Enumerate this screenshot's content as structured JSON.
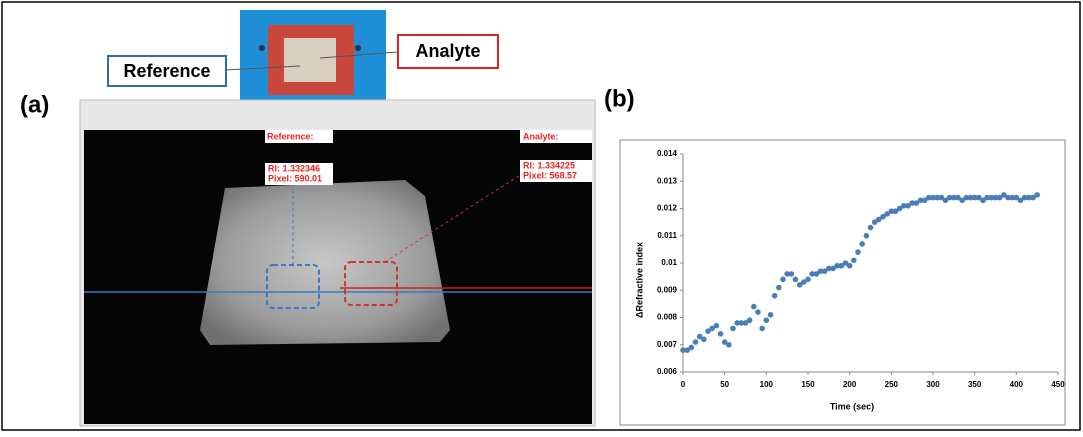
{
  "panel_a": {
    "label": "(a)",
    "photo_labels": {
      "reference": "Reference",
      "analyte": "Analyte"
    },
    "image_labels": {
      "reference_title": "Reference:",
      "reference_ri": "RI: 1.332346",
      "reference_pixel": "Pixel: 590.01",
      "analyte_title": "Analyte:",
      "analyte_ri": "RI: 1.334225",
      "analyte_pixel": "Pixel: 568.57"
    }
  },
  "panel_b": {
    "label": "(b)"
  },
  "chart_data": {
    "type": "scatter",
    "x_label": "Time (sec)",
    "y_label": "ΔRefractive index",
    "color": "#4a7ebb",
    "xlim": [
      0,
      450
    ],
    "ylim": [
      0.006,
      0.014
    ],
    "xticks": [
      0,
      50,
      100,
      150,
      200,
      250,
      300,
      350,
      400,
      450
    ],
    "yticks": [
      0.006,
      0.007,
      0.008,
      0.009,
      0.01,
      0.011,
      0.012,
      0.013,
      0.014
    ],
    "x": [
      0,
      5,
      10,
      15,
      20,
      25,
      30,
      35,
      40,
      45,
      50,
      55,
      60,
      65,
      70,
      75,
      80,
      85,
      90,
      95,
      100,
      105,
      110,
      115,
      120,
      125,
      130,
      135,
      140,
      145,
      150,
      155,
      160,
      165,
      170,
      175,
      180,
      185,
      190,
      195,
      200,
      205,
      210,
      215,
      220,
      225,
      230,
      235,
      240,
      245,
      250,
      255,
      260,
      265,
      270,
      275,
      280,
      285,
      290,
      295,
      300,
      305,
      310,
      315,
      320,
      325,
      330,
      335,
      340,
      345,
      350,
      355,
      360,
      365,
      370,
      375,
      380,
      385,
      390,
      395,
      400,
      405,
      410,
      415,
      420,
      425
    ],
    "values": [
      0.0068,
      0.0068,
      0.0069,
      0.0071,
      0.0073,
      0.0072,
      0.0075,
      0.0076,
      0.0077,
      0.0074,
      0.0071,
      0.007,
      0.0076,
      0.0078,
      0.0078,
      0.0078,
      0.0079,
      0.0084,
      0.0082,
      0.0076,
      0.0079,
      0.0081,
      0.0088,
      0.0091,
      0.0094,
      0.0096,
      0.0096,
      0.0094,
      0.0092,
      0.0093,
      0.0094,
      0.0096,
      0.0096,
      0.0097,
      0.0097,
      0.0098,
      0.0098,
      0.0099,
      0.0099,
      0.01,
      0.0099,
      0.0101,
      0.0104,
      0.0107,
      0.011,
      0.0113,
      0.0115,
      0.0116,
      0.0117,
      0.0118,
      0.0119,
      0.0119,
      0.012,
      0.0121,
      0.0121,
      0.0122,
      0.0122,
      0.0123,
      0.0123,
      0.0124,
      0.0124,
      0.0124,
      0.0124,
      0.0123,
      0.0124,
      0.0124,
      0.0124,
      0.0123,
      0.0124,
      0.0124,
      0.0124,
      0.0124,
      0.0123,
      0.0124,
      0.0124,
      0.0124,
      0.0124,
      0.0125,
      0.0124,
      0.0124,
      0.0124,
      0.0123,
      0.0124,
      0.0124,
      0.0124,
      0.0125
    ]
  }
}
